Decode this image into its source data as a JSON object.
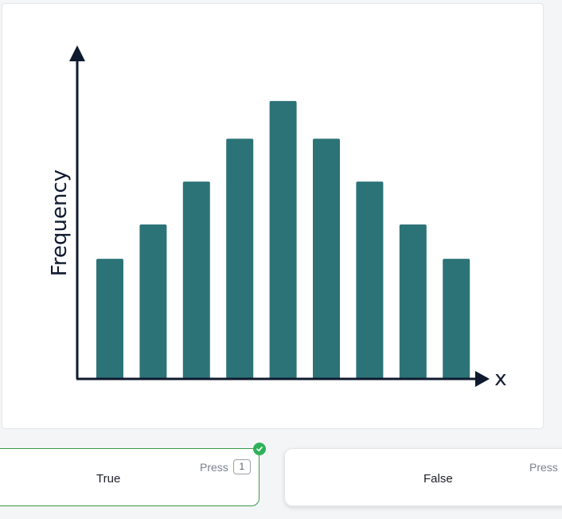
{
  "chart_data": {
    "type": "bar",
    "categories": [
      "",
      "",
      "",
      "",
      "",
      "",
      "",
      "",
      ""
    ],
    "values": [
      3.5,
      4.5,
      5.75,
      7,
      8.1,
      7,
      5.75,
      4.5,
      3.5
    ],
    "xlabel": "x",
    "ylabel": "Frequency",
    "ylim": [
      0,
      10
    ],
    "bar_color": "#2c7377",
    "axis_color": "#0f1a2e",
    "grid": false
  },
  "answers": [
    {
      "label": "True",
      "press_text": "Press",
      "key": "1",
      "selected": true
    },
    {
      "label": "False",
      "press_text": "Press",
      "key": "2",
      "selected": false
    }
  ],
  "colors": {
    "selected_border": "#3a9a4a",
    "check_badge": "#2fb15a"
  },
  "icons": {
    "selected_badge": "check-icon"
  }
}
